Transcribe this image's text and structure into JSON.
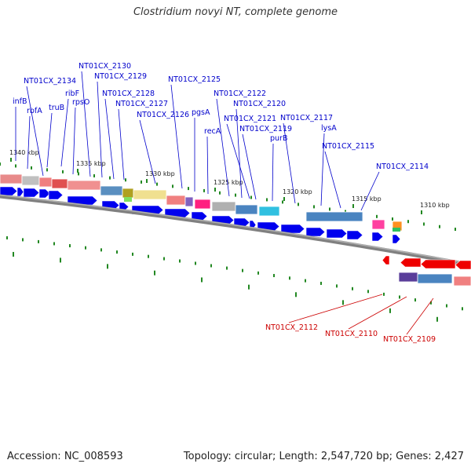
{
  "title": "Clostridium novyi NT, complete genome",
  "footer": {
    "accession": "Accession: NC_008593",
    "summary": "Topology: circular; Length: 2,547,720 bp; Genes: 2,427"
  },
  "colors": {
    "forward_label": "#0000cc",
    "reverse_label": "#cc0000",
    "forward_gene": "#0000ee",
    "reverse_gene": "#ee0000",
    "tick": "#228822",
    "backbone": "#808080"
  },
  "kbp_ticks": [
    "1340 kbp",
    "1335 kbp",
    "1330 kbp",
    "1325 kbp",
    "1320 kbp",
    "1315 kbp",
    "1310 kbp"
  ],
  "forward_genes": [
    "infB",
    "rbfA",
    "truB",
    "ribF",
    "rpsO",
    "NT01CX_2134",
    "NT01CX_2130",
    "NT01CX_2129",
    "NT01CX_2128",
    "NT01CX_2127",
    "NT01CX_2126",
    "NT01CX_2125",
    "pgsA",
    "recA",
    "NT01CX_2122",
    "NT01CX_2120",
    "NT01CX_2121",
    "NT01CX_2119",
    "purB",
    "NT01CX_2117",
    "lysA",
    "NT01CX_2115",
    "NT01CX_2114"
  ],
  "reverse_genes": [
    "NT01CX_2112",
    "NT01CX_2110",
    "NT01CX_2109"
  ]
}
